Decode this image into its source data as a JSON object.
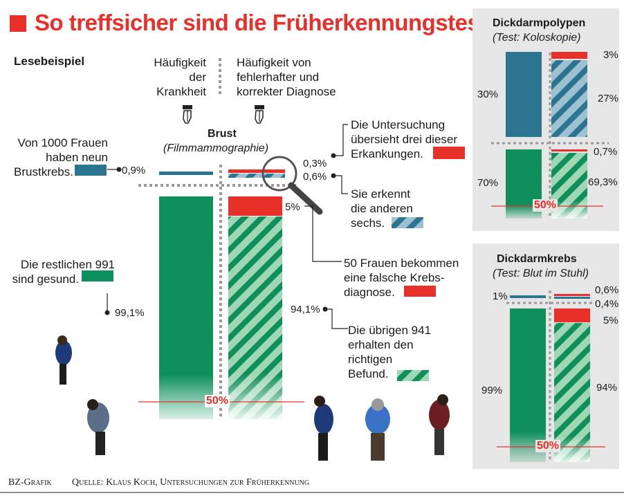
{
  "title": "So treffsicher sind die Früherkennungstests",
  "reading_example": "Lesebeispiel",
  "col_left_header": [
    "Häufigkeit",
    "der",
    "Krankheit"
  ],
  "col_right_header": [
    "Häufigkeit von",
    "fehlerhafter und",
    "korrekter Diagnose"
  ],
  "breast": {
    "title": "Brust",
    "subtitle": "(Filmmammographie)",
    "sick_text": [
      "Von 1000 Frauen",
      "haben neun",
      "Brustkrebs."
    ],
    "sick_pct": "0,9%",
    "healthy_text": [
      "Die restlichen 991",
      "sind gesund."
    ],
    "healthy_pct": "99,1%",
    "miss_pct": "0,3%",
    "miss_text": [
      "Die Untersuchung",
      "übersieht drei dieser",
      "Erkankungen."
    ],
    "detect_pct": "0,6%",
    "detect_text": [
      "Sie erkennt",
      "die anderen",
      "sechs."
    ],
    "false_pos_pct": "5%",
    "false_pos_text": [
      "50 Frauen bekommen",
      "eine falsche Krebs-",
      "diagnose."
    ],
    "true_neg_pct": "94,1%",
    "true_neg_text": [
      "Die übrigen 941",
      "erhalten den",
      "richtigen",
      "Befund."
    ],
    "fifty": "50%"
  },
  "polyps": {
    "title": "Dickdarmpolypen",
    "subtitle": "(Test: Koloskopie)",
    "sick_pct": "30%",
    "miss_pct": "3%",
    "detect_pct": "27%",
    "healthy_pct": "70%",
    "false_pos_pct": "0,7%",
    "true_neg_pct": "69,3%",
    "fifty": "50%"
  },
  "colon": {
    "title": "Dickdarmkrebs",
    "subtitle": "(Test: Blut im Stuhl)",
    "sick_pct": "1%",
    "miss_pct": "0,6%",
    "detect_pct": "0,4%",
    "false_pos_pct": "5%",
    "healthy_pct": "99%",
    "true_neg_pct": "94%",
    "fifty": "50%"
  },
  "footer_left": "BZ-Grafik",
  "footer_right": "Quelle: Klaus Koch, Untersuchungen zur Früherkennung",
  "colors": {
    "red": "#e8302b",
    "green": "#0e8f5b",
    "blue": "#2b7591",
    "lightgreen": "#9fd7b5",
    "lightblue": "#9ec1d2"
  },
  "chart_data": [
    {
      "type": "bar",
      "title": "Brust (Filmmammographie)",
      "categories": [
        "krank",
        "gesund"
      ],
      "series": [
        {
          "name": "Häufigkeit der Krankheit",
          "values": [
            0.9,
            99.1
          ]
        },
        {
          "name": "übersehen",
          "values": [
            0.3,
            0
          ]
        },
        {
          "name": "erkannt",
          "values": [
            0.6,
            0
          ]
        },
        {
          "name": "falsche Krebsdiagnose",
          "values": [
            0,
            5
          ]
        },
        {
          "name": "richtiger Befund",
          "values": [
            0,
            94.1
          ]
        }
      ],
      "ylim": [
        0,
        100
      ]
    },
    {
      "type": "bar",
      "title": "Dickdarmpolypen (Test: Koloskopie)",
      "categories": [
        "krank",
        "gesund"
      ],
      "series": [
        {
          "name": "Häufigkeit der Krankheit",
          "values": [
            30,
            70
          ]
        },
        {
          "name": "übersehen",
          "values": [
            3,
            0
          ]
        },
        {
          "name": "erkannt",
          "values": [
            27,
            0
          ]
        },
        {
          "name": "falsche Diagnose",
          "values": [
            0,
            0.7
          ]
        },
        {
          "name": "richtiger Befund",
          "values": [
            0,
            69.3
          ]
        }
      ],
      "ylim": [
        0,
        100
      ]
    },
    {
      "type": "bar",
      "title": "Dickdarmkrebs (Test: Blut im Stuhl)",
      "categories": [
        "krank",
        "gesund"
      ],
      "series": [
        {
          "name": "Häufigkeit der Krankheit",
          "values": [
            1,
            99
          ]
        },
        {
          "name": "übersehen",
          "values": [
            0.6,
            0
          ]
        },
        {
          "name": "erkannt",
          "values": [
            0.4,
            0
          ]
        },
        {
          "name": "falsche Diagnose",
          "values": [
            0,
            5
          ]
        },
        {
          "name": "richtiger Befund",
          "values": [
            0,
            94
          ]
        }
      ],
      "ylim": [
        0,
        100
      ]
    }
  ]
}
